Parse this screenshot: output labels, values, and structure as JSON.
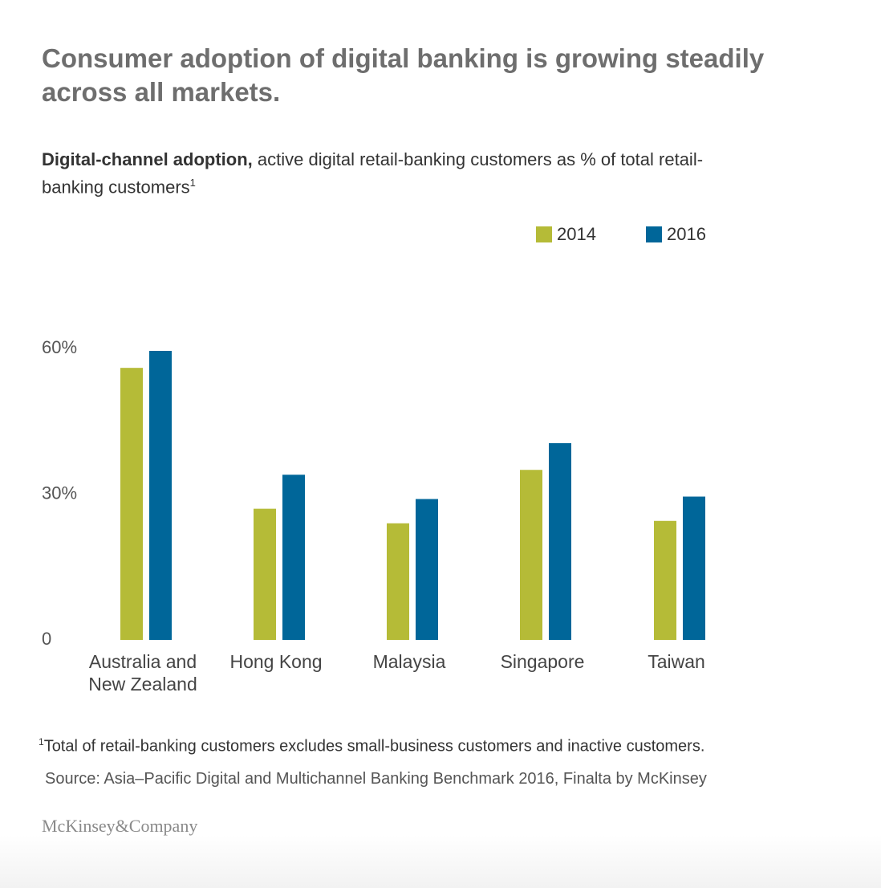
{
  "headline": "Consumer adoption of digital banking is growing steadily across all markets.",
  "subtitle": {
    "bold": "Digital-channel adoption,",
    "text": " active digital retail-banking customers as % of total retail-banking customers",
    "sup": "1"
  },
  "footnote": {
    "sup": "1",
    "text": "Total of retail-banking customers excludes small-business customers and inactive customers."
  },
  "source": "Source: Asia–Pacific Digital and Multichannel Banking Benchmark 2016, Finalta by McKinsey",
  "brand": "McKinsey&Company",
  "chart_data": {
    "type": "bar",
    "categories": [
      [
        "Australia and",
        "New Zealand"
      ],
      [
        "Hong Kong"
      ],
      [
        "Malaysia"
      ],
      [
        "Singapore"
      ],
      [
        "Taiwan"
      ]
    ],
    "series": [
      {
        "name": "2014",
        "color": "#b5bb37",
        "values": [
          56,
          27,
          24,
          35,
          24.5
        ]
      },
      {
        "name": "2016",
        "color": "#006699",
        "values": [
          59.5,
          34,
          29,
          40.5,
          29.5
        ]
      }
    ],
    "yticks": [
      {
        "value": 0,
        "label": "0"
      },
      {
        "value": 30,
        "label": "30%"
      },
      {
        "value": 60,
        "label": "60%"
      }
    ],
    "ylim": [
      0,
      60
    ],
    "grid": false,
    "legend_position": "top-right"
  }
}
